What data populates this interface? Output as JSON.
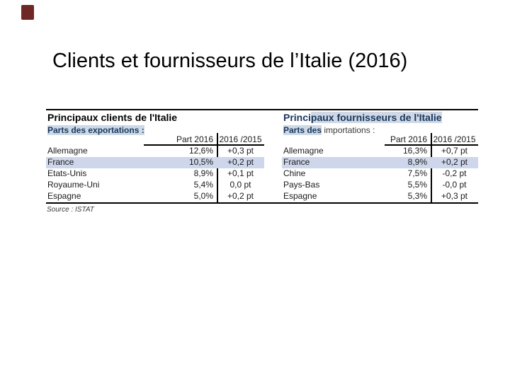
{
  "title": "Clients et fournisseurs de l’Italie (2016)",
  "source": "Source : ISTAT",
  "marker": {
    "color": "#6f2626"
  },
  "tables": [
    {
      "title_plain": "Principaux clients de l'Italie",
      "title_highlight": "",
      "subtitle_highlight": "Parts des exportations :",
      "subtitle_rest": "",
      "col_part": "Part 2016",
      "col_change": "2016 /2015",
      "rows": [
        {
          "country": "Allemagne",
          "part": "12,6%",
          "change": "+0,3 pt"
        },
        {
          "country": "France",
          "part": "10,5%",
          "change": "+0,2 pt"
        },
        {
          "country": "Etats-Unis",
          "part": "8,9%",
          "change": "+0,1 pt"
        },
        {
          "country": "Royaume-Uni",
          "part": "5,4%",
          "change": "0,0 pt"
        },
        {
          "country": "Espagne",
          "part": "5,0%",
          "change": "+0,2 pt"
        }
      ]
    },
    {
      "title_plain": "Princi",
      "title_highlight": "paux fournisseurs de l'Italie",
      "subtitle_highlight": "Parts des",
      "subtitle_rest": " importations :",
      "col_part": "Part 2016",
      "col_change": "2016 /2015",
      "rows": [
        {
          "country": "Allemagne",
          "part": "16,3%",
          "change": "+0,7 pt"
        },
        {
          "country": "France",
          "part": "8,9%",
          "change": "+0,2 pt"
        },
        {
          "country": "Chine",
          "part": "7,5%",
          "change": "-0,2 pt"
        },
        {
          "country": "Pays-Bas",
          "part": "5,5%",
          "change": "-0,0 pt"
        },
        {
          "country": "Espagne",
          "part": "5,3%",
          "change": "+0,3 pt"
        }
      ]
    }
  ],
  "colors": {
    "marker_maroon": "#6f2626",
    "accent_navy": "#17365d",
    "row_highlight": "#cdd6ea",
    "subtitle_highlight_bg": "#cdd9e6",
    "title_highlight_bg": "#cfd8e4",
    "rule_black": "#000000"
  }
}
